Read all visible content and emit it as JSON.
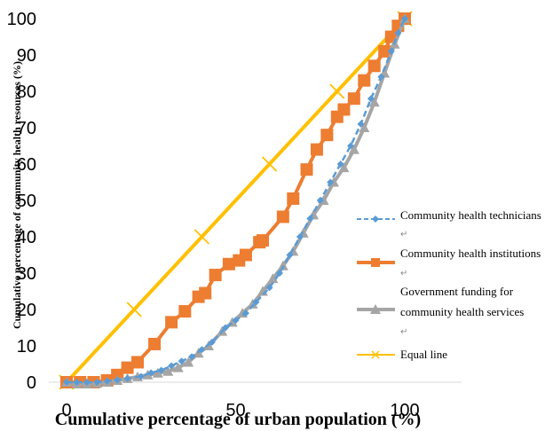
{
  "chart_data": {
    "type": "line",
    "xlabel": "Cumulative percentage of urban population (%)",
    "ylabel": "Cumulative percentage of community health resources (%)",
    "xlim": [
      0,
      100
    ],
    "ylim": [
      0,
      100
    ],
    "x_ticks": [
      "0",
      "50",
      "100"
    ],
    "y_ticks": [
      "0",
      "10",
      "20",
      "30",
      "40",
      "50",
      "60",
      "70",
      "80",
      "90",
      "100"
    ],
    "grid": false,
    "legend_position": "right",
    "pilcrow": "↵",
    "series": [
      {
        "name": "Community health technicians",
        "color": "#5B9BD5",
        "marker": "diamond",
        "dashed": true,
        "points": [
          [
            0,
            0
          ],
          [
            3,
            0
          ],
          [
            6,
            0
          ],
          [
            9,
            0
          ],
          [
            12,
            0.3
          ],
          [
            15,
            0.6
          ],
          [
            18,
            1
          ],
          [
            22,
            1.6
          ],
          [
            25,
            2.6
          ],
          [
            28,
            3.3
          ],
          [
            31,
            4.5
          ],
          [
            34,
            5.8
          ],
          [
            37,
            7
          ],
          [
            40,
            9
          ],
          [
            43,
            11
          ],
          [
            47,
            15
          ],
          [
            50,
            17
          ],
          [
            53,
            19
          ],
          [
            56,
            22
          ],
          [
            60,
            26
          ],
          [
            63,
            30
          ],
          [
            66,
            35
          ],
          [
            69,
            40
          ],
          [
            72,
            45
          ],
          [
            75,
            50
          ],
          [
            78,
            55
          ],
          [
            81,
            60
          ],
          [
            84,
            65
          ],
          [
            87,
            71
          ],
          [
            90,
            78
          ],
          [
            93,
            84
          ],
          [
            96,
            91
          ],
          [
            98,
            96
          ],
          [
            100,
            100
          ]
        ]
      },
      {
        "name": "Community health institutions",
        "color": "#ED7D31",
        "marker": "square",
        "dashed": false,
        "points": [
          [
            0,
            0
          ],
          [
            4,
            0
          ],
          [
            8,
            0
          ],
          [
            12,
            0.5
          ],
          [
            15,
            2
          ],
          [
            18,
            4
          ],
          [
            21,
            5.5
          ],
          [
            26,
            10.5
          ],
          [
            31,
            16.5
          ],
          [
            35,
            19.5
          ],
          [
            39,
            23.5
          ],
          [
            41,
            24.5
          ],
          [
            44,
            29.5
          ],
          [
            48,
            32.5
          ],
          [
            51,
            33.5
          ],
          [
            53,
            35
          ],
          [
            57,
            38.5
          ],
          [
            58,
            39
          ],
          [
            64,
            45.5
          ],
          [
            67,
            50.5
          ],
          [
            71,
            58.5
          ],
          [
            74,
            64
          ],
          [
            77,
            68
          ],
          [
            80,
            73
          ],
          [
            82,
            75
          ],
          [
            85,
            78
          ],
          [
            88,
            83
          ],
          [
            91,
            87
          ],
          [
            94,
            91
          ],
          [
            96,
            95
          ],
          [
            98,
            98
          ],
          [
            100,
            100
          ]
        ]
      },
      {
        "name": "Government funding for community health services",
        "name_line1": "Government funding for",
        "name_line2": "community health services",
        "color": "#A5A5A5",
        "marker": "triangle",
        "dashed": false,
        "points": [
          [
            0,
            0
          ],
          [
            3,
            -0.5
          ],
          [
            6,
            -0.5
          ],
          [
            9,
            -0.3
          ],
          [
            12,
            0
          ],
          [
            15,
            0.5
          ],
          [
            18,
            1
          ],
          [
            21,
            1.5
          ],
          [
            24,
            2
          ],
          [
            27,
            2.5
          ],
          [
            30,
            3
          ],
          [
            33,
            4
          ],
          [
            36,
            5.5
          ],
          [
            39,
            8
          ],
          [
            42,
            10
          ],
          [
            46,
            14
          ],
          [
            49,
            16.5
          ],
          [
            52,
            19
          ],
          [
            55,
            21.5
          ],
          [
            58,
            25
          ],
          [
            61,
            28.5
          ],
          [
            64,
            32
          ],
          [
            67,
            36
          ],
          [
            70,
            41
          ],
          [
            73,
            46
          ],
          [
            76,
            50
          ],
          [
            79,
            55
          ],
          [
            82,
            59
          ],
          [
            85,
            64
          ],
          [
            88,
            70
          ],
          [
            91,
            77
          ],
          [
            94,
            85
          ],
          [
            97,
            93
          ],
          [
            100,
            100
          ]
        ]
      },
      {
        "name": "Equal line",
        "color": "#FFC000",
        "marker": "x",
        "dashed": false,
        "points": [
          [
            0,
            0
          ],
          [
            20,
            20
          ],
          [
            40,
            40
          ],
          [
            60,
            60
          ],
          [
            80,
            80
          ],
          [
            100,
            100
          ]
        ]
      }
    ]
  }
}
